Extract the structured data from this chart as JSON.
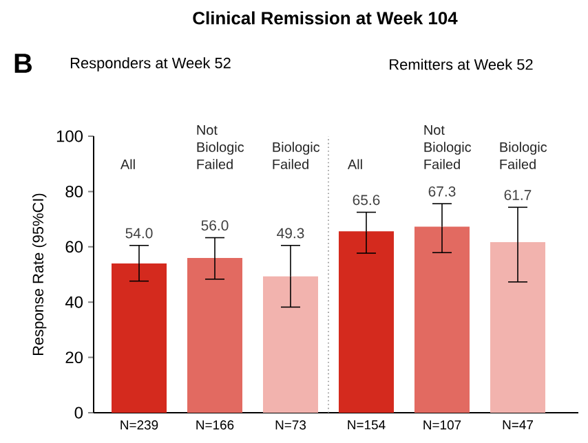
{
  "chart_data": {
    "type": "bar",
    "title": "Clinical Remission at Week 104",
    "ylabel": "Response Rate (95%CI)",
    "categories": [
      "N=239",
      "N=166",
      "N=73",
      "N=154",
      "N=107",
      "N=47"
    ],
    "values": [
      54.0,
      56.0,
      49.3,
      65.6,
      67.3,
      61.7
    ],
    "value_labels": [
      "54.0",
      "56.0",
      "49.3",
      "65.6",
      "67.3",
      "61.7"
    ],
    "errors": [
      [
        47.6,
        60.5
      ],
      [
        48.3,
        63.3
      ],
      [
        38.2,
        60.5
      ],
      [
        57.7,
        72.5
      ],
      [
        57.9,
        75.6
      ],
      [
        47.3,
        74.3
      ]
    ],
    "colors": [
      "#d42a1e",
      "#e26a61",
      "#f2b3ae",
      "#d42a1e",
      "#e26a61",
      "#f2b3ae"
    ],
    "ylim": [
      0,
      100
    ],
    "yticks": [
      0,
      20,
      40,
      60,
      80,
      100
    ],
    "grid": false,
    "annotations": [
      "B",
      "Responders at Week 52",
      "Remitters at Week 52",
      "All",
      "Not Biologic Failed",
      "Biologic Failed",
      "All",
      "Not Biologic Failed",
      "Biologic Failed"
    ]
  }
}
